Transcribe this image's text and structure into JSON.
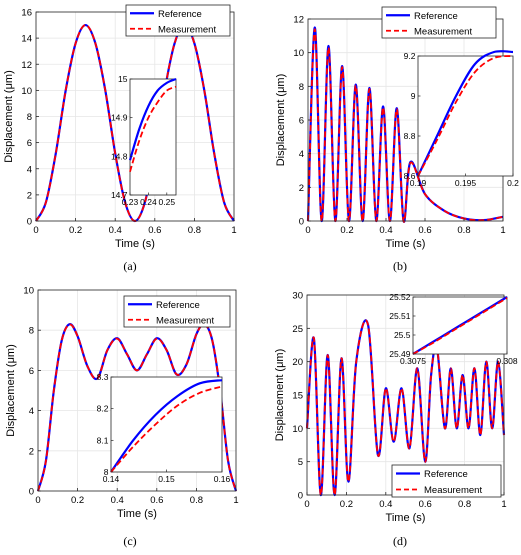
{
  "colors": {
    "reference": "#0000ff",
    "measurement": "#ff0000",
    "grid": "#e6e6e6",
    "axes": "#262626"
  },
  "legend_labels": [
    "Reference",
    "Measurement"
  ],
  "chart_data": [
    {
      "panel_label": "(a)",
      "type": "line",
      "xlabel": "Time (s)",
      "ylabel": "Displacement (μm)",
      "xlim": [
        0,
        1
      ],
      "ylim": [
        0,
        16
      ],
      "xticks": [
        "0",
        "0.2",
        "0.4",
        "0.6",
        "0.8",
        "1"
      ],
      "yticks": [
        "0",
        "2",
        "4",
        "6",
        "8",
        "10",
        "12",
        "14",
        "16"
      ],
      "grid": true,
      "legend": "top-right",
      "series": [
        {
          "name": "Reference",
          "style": "solid",
          "x": [
            0,
            0.05,
            0.1,
            0.15,
            0.2,
            0.25,
            0.3,
            0.35,
            0.4,
            0.45,
            0.5,
            0.55,
            0.6,
            0.65,
            0.7,
            0.75,
            0.8,
            0.85,
            0.9,
            0.95,
            1
          ],
          "y": [
            0,
            1.43,
            5.18,
            10.0,
            13.6,
            15.0,
            13.6,
            10.0,
            5.18,
            1.43,
            0,
            1.43,
            5.18,
            10.0,
            13.6,
            15.0,
            13.6,
            10.0,
            5.18,
            1.43,
            0
          ]
        },
        {
          "name": "Measurement",
          "style": "dashed",
          "x": [
            0,
            0.05,
            0.1,
            0.15,
            0.2,
            0.25,
            0.3,
            0.35,
            0.4,
            0.45,
            0.5,
            0.55,
            0.6,
            0.65,
            0.7,
            0.75,
            0.8,
            0.85,
            0.9,
            0.95,
            1
          ],
          "y": [
            0,
            1.43,
            5.18,
            10.0,
            13.6,
            15.0,
            13.6,
            10.0,
            5.18,
            1.43,
            0,
            1.43,
            5.18,
            10.0,
            13.6,
            15.0,
            13.6,
            10.0,
            5.18,
            1.43,
            0
          ]
        }
      ],
      "inset": {
        "xlim": [
          0.23,
          0.255
        ],
        "ylim": [
          14.7,
          15
        ],
        "xticks": [
          "0.23",
          "0.24",
          "0.25"
        ],
        "yticks": [
          "14.7",
          "14.8",
          "14.9",
          "15"
        ],
        "series": [
          {
            "name": "Reference",
            "x": [
              0.23,
              0.235,
              0.24,
              0.245,
              0.25,
              0.255
            ],
            "y": [
              14.79,
              14.87,
              14.93,
              14.97,
              14.99,
              15.0
            ]
          },
          {
            "name": "Measurement",
            "x": [
              0.23,
              0.235,
              0.24,
              0.245,
              0.25,
              0.255
            ],
            "y": [
              14.76,
              14.84,
              14.9,
              14.94,
              14.97,
              14.98
            ]
          }
        ]
      }
    },
    {
      "panel_label": "(b)",
      "type": "line",
      "xlabel": "Time (s)",
      "ylabel": "Displacement (μm)",
      "xlim": [
        0,
        1
      ],
      "ylim": [
        0,
        12
      ],
      "xticks": [
        "0",
        "0.2",
        "0.4",
        "0.6",
        "0.8",
        "1"
      ],
      "yticks": [
        "0",
        "2",
        "4",
        "6",
        "8",
        "10",
        "12"
      ],
      "grid": true,
      "legend": "top-right",
      "series": [
        {
          "name": "Reference",
          "style": "solid",
          "x": [
            0,
            0.035,
            0.07,
            0.105,
            0.14,
            0.175,
            0.21,
            0.245,
            0.28,
            0.315,
            0.35,
            0.385,
            0.42,
            0.455,
            0.49,
            0.525,
            0.6,
            0.7,
            0.8,
            0.9,
            1
          ],
          "y": [
            0,
            11.5,
            0,
            10.4,
            0,
            9.2,
            0,
            8.1,
            0,
            7.9,
            0,
            6.8,
            0,
            6.7,
            0,
            3.5,
            1.6,
            0.6,
            0.15,
            0.05,
            0.25
          ]
        },
        {
          "name": "Measurement",
          "style": "dashed",
          "x": [
            0,
            0.035,
            0.07,
            0.105,
            0.14,
            0.175,
            0.21,
            0.245,
            0.28,
            0.315,
            0.35,
            0.385,
            0.42,
            0.455,
            0.49,
            0.525,
            0.6,
            0.7,
            0.8,
            0.9,
            1
          ],
          "y": [
            0,
            11.4,
            0,
            10.3,
            0,
            9.15,
            0,
            8.05,
            0,
            7.85,
            0,
            6.75,
            0,
            6.65,
            0,
            3.45,
            1.6,
            0.6,
            0.15,
            0.05,
            0.25
          ]
        }
      ],
      "inset": {
        "xlim": [
          0.19,
          0.2
        ],
        "ylim": [
          8.6,
          9.2
        ],
        "xticks": [
          "0.19",
          "0.195",
          "0.2"
        ],
        "yticks": [
          "8.6",
          "8.8",
          "9",
          "9.2"
        ],
        "series": [
          {
            "name": "Reference",
            "x": [
              0.19,
              0.192,
              0.194,
              0.196,
              0.198,
              0.2
            ],
            "y": [
              8.6,
              8.8,
              9.0,
              9.16,
              9.22,
              9.22
            ]
          },
          {
            "name": "Measurement",
            "x": [
              0.19,
              0.192,
              0.194,
              0.196,
              0.198,
              0.2
            ],
            "y": [
              8.6,
              8.78,
              8.97,
              9.12,
              9.19,
              9.2
            ]
          }
        ]
      }
    },
    {
      "panel_label": "(c)",
      "type": "line",
      "xlabel": "Time (s)",
      "ylabel": "Displacement (μm)",
      "xlim": [
        0,
        1
      ],
      "ylim": [
        0,
        10
      ],
      "xticks": [
        "0",
        "0.2",
        "0.4",
        "0.6",
        "0.8",
        "1"
      ],
      "yticks": [
        "0",
        "2",
        "4",
        "6",
        "8",
        "10"
      ],
      "grid": true,
      "legend": "top-right",
      "series": [
        {
          "name": "Reference",
          "style": "solid",
          "x": [
            0,
            0.04,
            0.08,
            0.12,
            0.16,
            0.2,
            0.25,
            0.3,
            0.35,
            0.4,
            0.45,
            0.5,
            0.55,
            0.6,
            0.65,
            0.7,
            0.75,
            0.8,
            0.84,
            0.88,
            0.92,
            0.96,
            1
          ],
          "y": [
            0,
            1.5,
            5.0,
            7.5,
            8.3,
            7.7,
            6.2,
            5.6,
            7.0,
            7.6,
            6.8,
            6.0,
            6.8,
            7.6,
            7.0,
            5.8,
            6.3,
            7.8,
            8.3,
            7.5,
            5.0,
            1.5,
            0
          ]
        },
        {
          "name": "Measurement",
          "style": "dashed",
          "x": [
            0,
            0.04,
            0.08,
            0.12,
            0.16,
            0.2,
            0.25,
            0.3,
            0.35,
            0.4,
            0.45,
            0.5,
            0.55,
            0.6,
            0.65,
            0.7,
            0.75,
            0.8,
            0.84,
            0.88,
            0.92,
            0.96,
            1
          ],
          "y": [
            0,
            1.5,
            5.0,
            7.5,
            8.28,
            7.7,
            6.2,
            5.6,
            7.0,
            7.58,
            6.8,
            6.0,
            6.8,
            7.58,
            7.0,
            5.8,
            6.3,
            7.8,
            8.28,
            7.5,
            5.0,
            1.5,
            0
          ]
        }
      ],
      "inset": {
        "xlim": [
          0.14,
          0.16
        ],
        "ylim": [
          8,
          8.3
        ],
        "xticks": [
          "0.14",
          "0.15",
          "0.16"
        ],
        "yticks": [
          "8",
          "8.1",
          "8.2",
          "8.3"
        ],
        "series": [
          {
            "name": "Reference",
            "x": [
              0.14,
              0.144,
              0.148,
              0.152,
              0.156,
              0.16
            ],
            "y": [
              8.0,
              8.1,
              8.18,
              8.24,
              8.28,
              8.29
            ]
          },
          {
            "name": "Measurement",
            "x": [
              0.14,
              0.144,
              0.148,
              0.152,
              0.156,
              0.16
            ],
            "y": [
              8.0,
              8.08,
              8.15,
              8.21,
              8.25,
              8.27
            ]
          }
        ]
      }
    },
    {
      "panel_label": "(d)",
      "type": "line",
      "xlabel": "Time (s)",
      "ylabel": "Displacement (μm)",
      "xlim": [
        0,
        1
      ],
      "ylim": [
        0,
        30
      ],
      "xticks": [
        "0",
        "0.2",
        "0.4",
        "0.6",
        "0.8",
        "1"
      ],
      "yticks": [
        "0",
        "5",
        "10",
        "15",
        "20",
        "25",
        "30"
      ],
      "grid": true,
      "legend": "bottom-right",
      "series": [
        {
          "name": "Reference",
          "style": "solid",
          "x": [
            0,
            0.035,
            0.07,
            0.105,
            0.14,
            0.175,
            0.21,
            0.25,
            0.31,
            0.36,
            0.4,
            0.44,
            0.48,
            0.52,
            0.56,
            0.6,
            0.63,
            0.66,
            0.7,
            0.73,
            0.76,
            0.79,
            0.82,
            0.85,
            0.88,
            0.91,
            0.94,
            0.97,
            1
          ],
          "y": [
            10,
            23.5,
            0,
            21,
            0,
            20.5,
            2,
            20,
            25.5,
            6,
            16,
            8,
            16,
            7,
            19,
            5,
            18,
            22,
            10,
            19,
            10,
            18,
            10,
            19,
            9,
            20,
            10,
            20,
            9
          ]
        },
        {
          "name": "Measurement",
          "style": "dashed",
          "x": [
            0,
            0.035,
            0.07,
            0.105,
            0.14,
            0.175,
            0.21,
            0.25,
            0.31,
            0.36,
            0.4,
            0.44,
            0.48,
            0.52,
            0.56,
            0.6,
            0.63,
            0.66,
            0.7,
            0.73,
            0.76,
            0.79,
            0.82,
            0.85,
            0.88,
            0.91,
            0.94,
            0.97,
            1
          ],
          "y": [
            10,
            23.5,
            0,
            21,
            0,
            20.5,
            2,
            20,
            25.5,
            6,
            16,
            8,
            16,
            7,
            19,
            5,
            18,
            22,
            10,
            19,
            10,
            18,
            10,
            19,
            9,
            20,
            10,
            20,
            9
          ]
        }
      ],
      "inset": {
        "xlim": [
          0.3075,
          0.308
        ],
        "ylim": [
          25.49,
          25.52
        ],
        "xticks": [
          "0.3075",
          "0.308"
        ],
        "yticks": [
          "25.49",
          "25.5",
          "25.51",
          "25.52"
        ],
        "series": [
          {
            "name": "Reference",
            "x": [
              0.3075,
              0.3076,
              0.3077,
              0.3078,
              0.3079,
              0.308
            ],
            "y": [
              25.49,
              25.496,
              25.502,
              25.508,
              25.514,
              25.52
            ]
          },
          {
            "name": "Measurement",
            "x": [
              0.3075,
              0.3076,
              0.3077,
              0.3078,
              0.3079,
              0.308
            ],
            "y": [
              25.49,
              25.4955,
              25.5015,
              25.5075,
              25.5135,
              25.5195
            ]
          }
        ]
      }
    }
  ]
}
